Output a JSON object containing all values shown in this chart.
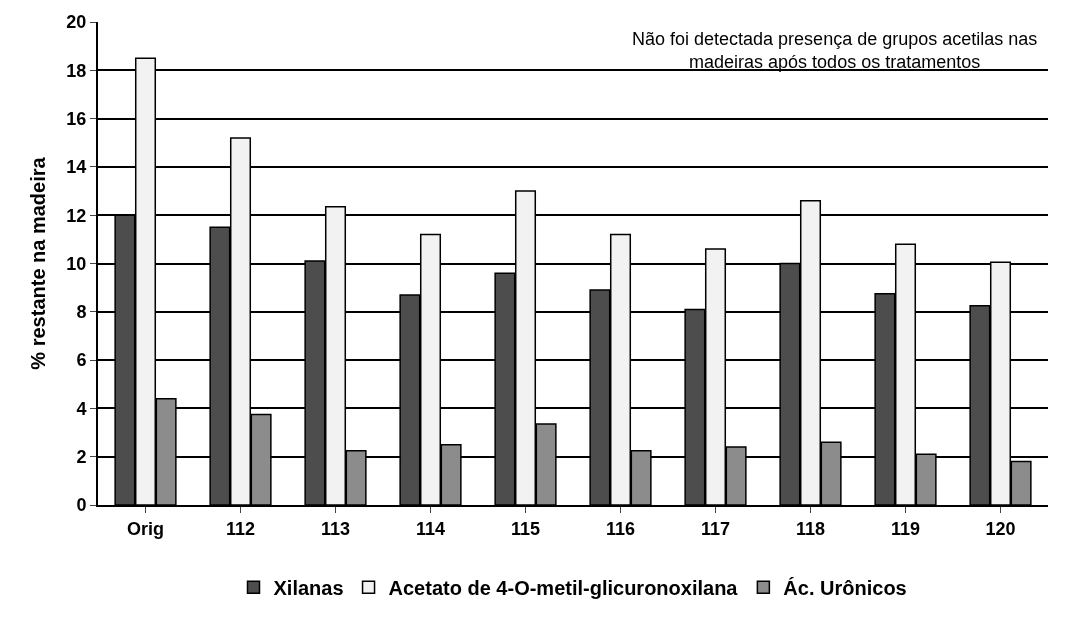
{
  "chart_data": {
    "type": "bar",
    "ylabel": "% restante na madeira",
    "categories": [
      "Orig",
      "112",
      "113",
      "114",
      "115",
      "116",
      "117",
      "118",
      "119",
      "120"
    ],
    "series": [
      {
        "name": "Xilanas",
        "color": "#4d4d4d",
        "values": [
          12.0,
          11.5,
          10.1,
          8.7,
          9.6,
          8.9,
          8.1,
          10.0,
          8.75,
          8.25
        ]
      },
      {
        "name": "Acetato de 4-O-metil-glicuronoxilana",
        "color": "#f2f2f2",
        "values": [
          18.5,
          15.2,
          12.35,
          11.2,
          13.0,
          11.2,
          10.6,
          12.6,
          10.8,
          10.05
        ]
      },
      {
        "name": "Ác. Urônicos",
        "color": "#8c8c8c",
        "values": [
          4.4,
          3.75,
          2.25,
          2.5,
          3.35,
          2.25,
          2.4,
          2.6,
          2.1,
          1.8
        ]
      }
    ],
    "ylim": [
      0,
      20
    ],
    "yticks": [
      0,
      2,
      4,
      6,
      8,
      10,
      12,
      14,
      16,
      18,
      20
    ],
    "grid": "y",
    "legend": "bottom",
    "annotations": [
      "Não foi detectada presença de grupos acetilas nas\nmadeiras após todos os tratamentos"
    ]
  }
}
